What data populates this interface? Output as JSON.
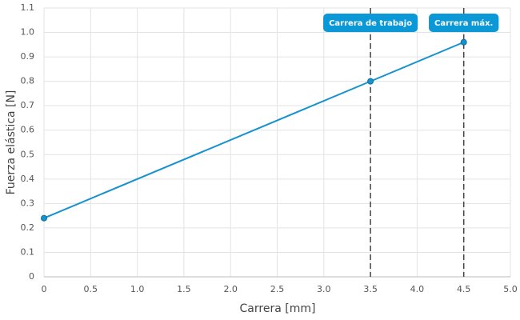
{
  "chart_data": {
    "type": "line",
    "x_label": "Carrera [mm]",
    "y_label": "Fuerza elástica [N]",
    "x": [
      0,
      3.5,
      4.5
    ],
    "values": [
      0.24,
      0.8,
      0.96
    ],
    "color": "#1592cf",
    "xlim": [
      0,
      5
    ],
    "ylim": [
      0,
      1.1
    ],
    "xticks": [
      0,
      0.5,
      {
        "value": 1,
        "label": "1.0"
      },
      1.5,
      {
        "value": 2,
        "label": "2.0"
      },
      2.5,
      {
        "value": 3,
        "label": "3.0"
      },
      3.5,
      {
        "value": 4,
        "label": "4.0"
      },
      4.5,
      {
        "value": 5,
        "label": "5.0"
      }
    ],
    "yticks": [
      0,
      0.1,
      0.2,
      0.3,
      0.4,
      0.5,
      0.6,
      0.7,
      0.8,
      0.9,
      {
        "value": 1,
        "label": "1.0"
      },
      1.1
    ],
    "grid": true,
    "annotations": [
      {
        "x": 3.5,
        "label": "Carrera de trabajo",
        "color": "#0b98d6"
      },
      {
        "x": 4.5,
        "label": "Carrera máx.",
        "color": "#0b98d6"
      }
    ]
  }
}
